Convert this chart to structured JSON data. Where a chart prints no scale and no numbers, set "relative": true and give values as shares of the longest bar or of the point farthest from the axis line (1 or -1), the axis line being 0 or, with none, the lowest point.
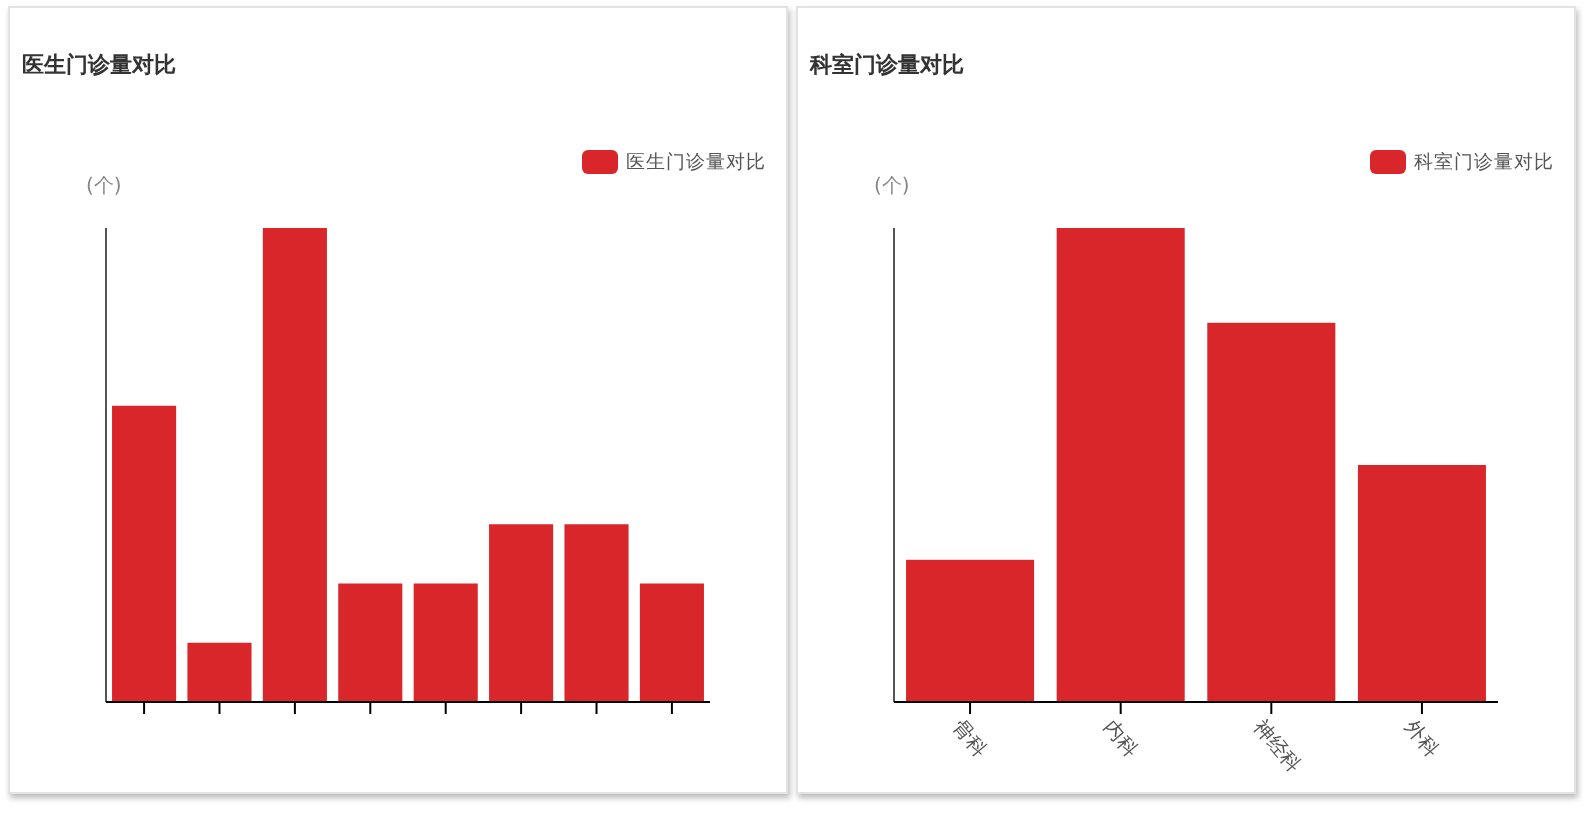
{
  "chart_data": [
    {
      "type": "bar",
      "title": "医生门诊量对比",
      "ylabel": "(个)",
      "relative": true,
      "legend": "top right",
      "categories": [
        null,
        null,
        null,
        null,
        null,
        null,
        null,
        null
      ],
      "series": [
        {
          "name": "医生门诊量对比",
          "color": "#d9262a",
          "values": [
            0.625,
            0.125,
            1,
            0.25,
            0.25,
            0.375,
            0.375,
            0.25
          ]
        }
      ]
    },
    {
      "type": "bar",
      "title": "科室门诊量对比",
      "ylabel": "(个)",
      "relative": true,
      "legend": "top right",
      "categories": [
        "骨科",
        "内科",
        "神经科",
        "外科"
      ],
      "series": [
        {
          "name": "科室门诊量对比",
          "color": "#d9262a",
          "values": [
            0.3,
            1,
            0.8,
            0.5
          ]
        }
      ]
    }
  ]
}
